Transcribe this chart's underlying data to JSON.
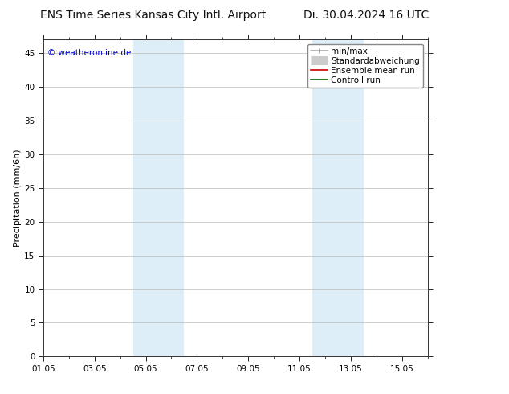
{
  "title_left": "ENS Time Series Kansas City Intl. Airport",
  "title_right": "Di. 30.04.2024 16 UTC",
  "ylabel": "Precipitation (mm/6h)",
  "watermark": "© weatheronline.de",
  "watermark_color": "#0000cc",
  "ylim": [
    0,
    47
  ],
  "yticks": [
    0,
    5,
    10,
    15,
    20,
    25,
    30,
    35,
    40,
    45
  ],
  "xlim": [
    0,
    15
  ],
  "xtick_labels": [
    "01.05",
    "03.05",
    "05.05",
    "07.05",
    "09.05",
    "11.05",
    "13.05",
    "15.05"
  ],
  "xtick_positions": [
    0,
    2,
    4,
    6,
    8,
    10,
    12,
    14
  ],
  "shaded_bands": [
    {
      "x_start": 3.5,
      "x_end": 5.5,
      "color": "#ddeef8"
    },
    {
      "x_start": 10.5,
      "x_end": 12.5,
      "color": "#ddeef8"
    }
  ],
  "legend_entries": [
    {
      "label": "min/max",
      "color": "#aaaaaa",
      "linewidth": 1.2,
      "style": "minmax"
    },
    {
      "label": "Standardabweichung",
      "color": "#cccccc",
      "linewidth": 8,
      "style": "thick"
    },
    {
      "label": "Ensemble mean run",
      "color": "#cc0000",
      "linewidth": 1.2,
      "style": "line"
    },
    {
      "label": "Controll run",
      "color": "#006600",
      "linewidth": 1.2,
      "style": "line"
    }
  ],
  "background_color": "#ffffff",
  "grid_color": "#bbbbbb",
  "title_fontsize": 10,
  "axis_fontsize": 8,
  "tick_fontsize": 7.5,
  "legend_fontsize": 7.5
}
